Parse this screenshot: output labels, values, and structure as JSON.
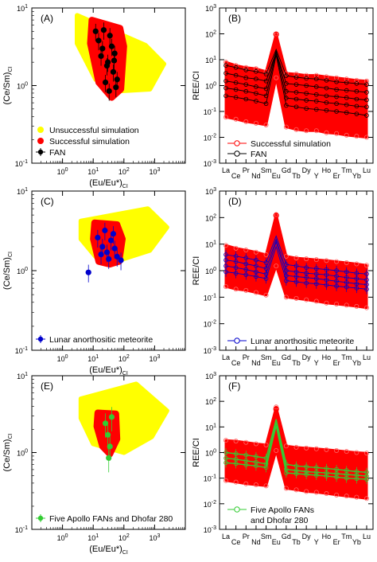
{
  "colors": {
    "unsuccessful": "#ffff00",
    "successful": "#ff0000",
    "fan": "#000000",
    "lunar": "#0000cc",
    "apollo": "#33cc33"
  },
  "chart_data": [
    {
      "id": "A",
      "type": "scatter",
      "panel_label": "(A)",
      "xlabel_main": "(Eu/Eu*)",
      "xlabel_sub": "CI",
      "ylabel_main": "(Ce/Sm)",
      "ylabel_sub": "CI",
      "xscale": "log",
      "yscale": "log",
      "xlim": [
        0.1,
        10000
      ],
      "ylim": [
        0.1,
        10
      ],
      "x_ticks": [
        {
          "v": 1,
          "label": "10",
          "exp": "0"
        },
        {
          "v": 10,
          "label": "10",
          "exp": "1"
        },
        {
          "v": 100,
          "label": "10",
          "exp": "2"
        },
        {
          "v": 1000,
          "label": "10",
          "exp": "3"
        }
      ],
      "y_ticks": [
        {
          "v": 0.1,
          "label": "10",
          "exp": "-1"
        },
        {
          "v": 1,
          "label": "10",
          "exp": "0"
        },
        {
          "v": 10,
          "label": "10",
          "exp": "1"
        }
      ],
      "unsuccessful_region": [
        [
          3,
          8
        ],
        [
          500,
          3.3
        ],
        [
          2000,
          1.9
        ],
        [
          700,
          0.9
        ],
        [
          60,
          0.85
        ],
        [
          12,
          1.2
        ],
        [
          3,
          3.5
        ]
      ],
      "successful_region": [
        [
          9,
          7
        ],
        [
          75,
          5.5
        ],
        [
          100,
          3.2
        ],
        [
          80,
          0.9
        ],
        [
          40,
          0.7
        ],
        [
          15,
          1.1
        ],
        [
          8,
          3.5
        ]
      ],
      "points": [
        [
          12,
          5
        ],
        [
          20,
          3
        ],
        [
          30,
          2
        ],
        [
          45,
          1.5
        ],
        [
          25,
          1.1
        ],
        [
          50,
          2.6
        ],
        [
          15,
          3.8
        ],
        [
          35,
          4.4
        ],
        [
          60,
          1.2
        ],
        [
          28,
          1.8
        ],
        [
          18,
          2.4
        ],
        [
          40,
          3.2
        ],
        [
          55,
          0.95
        ],
        [
          22,
          5.2
        ],
        [
          33,
          0.85
        ],
        [
          48,
          2.1
        ]
      ],
      "point_yerr": 0.25,
      "legend": {
        "position": "bottom-left",
        "entries": [
          {
            "label": "Unsuccessful simulation",
            "kind": "unsuccessful"
          },
          {
            "label": "Successful simulation",
            "kind": "successful"
          },
          {
            "label": "FAN",
            "kind": "fan"
          }
        ]
      }
    },
    {
      "id": "B",
      "type": "line",
      "panel_label": "(B)",
      "ylabel": "REE/CI",
      "yscale": "log",
      "ylim": [
        0.001,
        1000
      ],
      "categories": [
        "La",
        "Ce",
        "Pr",
        "Nd",
        "Sm",
        "Eu",
        "Gd",
        "Tb",
        "Dy",
        "Y",
        "Ho",
        "Er",
        "Tm",
        "Yb",
        "Lu"
      ],
      "y_ticks": [
        {
          "v": 0.001,
          "label": "10",
          "exp": "-3"
        },
        {
          "v": 0.01,
          "label": "10",
          "exp": "-2"
        },
        {
          "v": 0.1,
          "label": "10",
          "exp": "-1"
        },
        {
          "v": 1,
          "label": "10",
          "exp": "0"
        },
        {
          "v": 10,
          "label": "10",
          "exp": "1"
        },
        {
          "v": 100,
          "label": "10",
          "exp": "2"
        },
        {
          "v": 1000,
          "label": "10",
          "exp": "3"
        }
      ],
      "successful_band": {
        "upper": [
          8,
          6,
          5,
          4.5,
          3.5,
          100,
          3,
          2.8,
          2.5,
          2.5,
          2.2,
          2,
          1.8,
          1.6,
          1.5
        ],
        "lower": [
          0.06,
          0.05,
          0.04,
          0.035,
          0.03,
          2,
          0.025,
          0.02,
          0.018,
          0.018,
          0.015,
          0.014,
          0.012,
          0.011,
          0.01
        ]
      },
      "series_lines": [
        [
          6,
          5,
          4,
          3.5,
          2.8,
          25,
          2.4,
          2.1,
          1.9,
          1.8,
          1.6,
          1.4,
          1.3,
          1.2,
          1.1
        ],
        [
          3,
          2.5,
          2,
          1.8,
          1.5,
          20,
          1.2,
          1.1,
          1,
          0.9,
          0.8,
          0.7,
          0.65,
          0.6,
          0.55
        ],
        [
          1.5,
          1.3,
          1.1,
          0.9,
          0.75,
          22,
          0.6,
          0.55,
          0.5,
          0.45,
          0.4,
          0.37,
          0.34,
          0.3,
          0.28
        ],
        [
          0.8,
          0.7,
          0.6,
          0.5,
          0.4,
          18,
          0.33,
          0.3,
          0.27,
          0.25,
          0.22,
          0.2,
          0.18,
          0.16,
          0.15
        ],
        [
          0.4,
          0.35,
          0.3,
          0.25,
          0.2,
          15,
          0.17,
          0.15,
          0.13,
          0.12,
          0.11,
          0.1,
          0.09,
          0.08,
          0.07
        ]
      ],
      "peak_marker": [
        5,
        95
      ],
      "legend": {
        "position": "bottom-left",
        "entries": [
          {
            "label": "Successful simulation",
            "kind": "successful-open"
          },
          {
            "label": "FAN",
            "kind": "fan-open"
          }
        ]
      }
    },
    {
      "id": "C",
      "type": "scatter",
      "panel_label": "(C)",
      "xlabel_main": "(Eu/Eu*)",
      "xlabel_sub": "CI",
      "ylabel_main": "(Ce/Sm)",
      "ylabel_sub": "CI",
      "xscale": "log",
      "yscale": "log",
      "xlim": [
        0.1,
        10000
      ],
      "ylim": [
        0.1,
        10
      ],
      "x_ticks": [
        {
          "v": 1,
          "label": "10",
          "exp": "0"
        },
        {
          "v": 10,
          "label": "10",
          "exp": "1"
        },
        {
          "v": 100,
          "label": "10",
          "exp": "2"
        },
        {
          "v": 1000,
          "label": "10",
          "exp": "3"
        }
      ],
      "y_ticks": [
        {
          "v": 0.1,
          "label": "10",
          "exp": "-1"
        },
        {
          "v": 1,
          "label": "10",
          "exp": "0"
        },
        {
          "v": 10,
          "label": "10",
          "exp": "1"
        }
      ],
      "unsuccessful_region": [
        [
          4,
          4.2
        ],
        [
          600,
          6
        ],
        [
          2500,
          3.5
        ],
        [
          700,
          1.8
        ],
        [
          50,
          1.3
        ],
        [
          12,
          1.5
        ],
        [
          4,
          2.5
        ]
      ],
      "successful_region": [
        [
          11,
          4
        ],
        [
          60,
          3.8
        ],
        [
          90,
          2.5
        ],
        [
          70,
          1.3
        ],
        [
          35,
          1.2
        ],
        [
          15,
          1.3
        ],
        [
          10,
          2.5
        ]
      ],
      "points": [
        [
          14,
          2.6
        ],
        [
          20,
          2
        ],
        [
          28,
          1.7
        ],
        [
          38,
          2.4
        ],
        [
          50,
          1.9
        ],
        [
          24,
          3.2
        ],
        [
          60,
          1.5
        ],
        [
          32,
          1.4
        ],
        [
          18,
          1.6
        ],
        [
          45,
          2.9
        ],
        [
          7,
          0.95
        ],
        [
          80,
          1.35
        ]
      ],
      "point_yerr": 0.25,
      "legend": {
        "position": "bottom-left",
        "entries": [
          {
            "label": "Lunar anorthositic meteorite",
            "kind": "lunar"
          }
        ]
      }
    },
    {
      "id": "D",
      "type": "line",
      "panel_label": "(D)",
      "ylabel": "REE/CI",
      "yscale": "log",
      "ylim": [
        0.001,
        1000
      ],
      "categories": [
        "La",
        "Ce",
        "Pr",
        "Nd",
        "Sm",
        "Eu",
        "Gd",
        "Tb",
        "Dy",
        "Y",
        "Ho",
        "Er",
        "Tm",
        "Yb",
        "Lu"
      ],
      "y_ticks": [
        {
          "v": 0.001,
          "label": "10",
          "exp": "-3"
        },
        {
          "v": 0.01,
          "label": "10",
          "exp": "-2"
        },
        {
          "v": 0.1,
          "label": "10",
          "exp": "-1"
        },
        {
          "v": 1,
          "label": "10",
          "exp": "0"
        },
        {
          "v": 10,
          "label": "10",
          "exp": "1"
        },
        {
          "v": 100,
          "label": "10",
          "exp": "2"
        },
        {
          "v": 1000,
          "label": "10",
          "exp": "3"
        }
      ],
      "successful_band": {
        "upper": [
          9,
          7,
          6,
          5,
          4,
          130,
          3.5,
          3,
          2.8,
          2.6,
          2.4,
          2.2,
          2,
          1.8,
          1.6
        ],
        "lower": [
          0.25,
          0.2,
          0.18,
          0.15,
          0.12,
          1.5,
          0.1,
          0.09,
          0.08,
          0.07,
          0.06,
          0.055,
          0.05,
          0.045,
          0.04
        ]
      },
      "series_lines": [
        [
          4,
          3.5,
          3,
          2.5,
          2,
          20,
          1.7,
          1.5,
          1.3,
          1.2,
          1.1,
          1,
          0.9,
          0.8,
          0.75
        ],
        [
          2.5,
          2.2,
          1.8,
          1.5,
          1.2,
          15,
          1,
          0.9,
          0.8,
          0.75,
          0.7,
          0.62,
          0.55,
          0.5,
          0.45
        ],
        [
          1.5,
          1.3,
          1.1,
          0.9,
          0.75,
          12,
          0.65,
          0.6,
          0.55,
          0.5,
          0.45,
          0.4,
          0.36,
          0.32,
          0.3
        ],
        [
          0.9,
          0.8,
          0.7,
          0.6,
          0.5,
          8,
          0.42,
          0.38,
          0.34,
          0.32,
          0.29,
          0.26,
          0.24,
          0.22,
          0.2
        ]
      ],
      "peak_marker": [
        5,
        120
      ],
      "legend": {
        "position": "bottom-left",
        "entries": [
          {
            "label": "Lunar anorthositic meteorite",
            "kind": "lunar-open"
          }
        ]
      }
    },
    {
      "id": "E",
      "type": "scatter",
      "panel_label": "(E)",
      "xlabel_main": "(Eu/Eu*)",
      "xlabel_sub": "CI",
      "ylabel_main": "(Ce/Sm)",
      "ylabel_sub": "CI",
      "xscale": "log",
      "yscale": "log",
      "xlim": [
        0.1,
        10000
      ],
      "ylim": [
        0.1,
        10
      ],
      "x_ticks": [
        {
          "v": 1,
          "label": "10",
          "exp": "0"
        },
        {
          "v": 10,
          "label": "10",
          "exp": "1"
        },
        {
          "v": 100,
          "label": "10",
          "exp": "2"
        },
        {
          "v": 1000,
          "label": "10",
          "exp": "3"
        }
      ],
      "y_ticks": [
        {
          "v": 0.1,
          "label": "10",
          "exp": "-1"
        },
        {
          "v": 1,
          "label": "10",
          "exp": "0"
        },
        {
          "v": 10,
          "label": "10",
          "exp": "1"
        }
      ],
      "unsuccessful_region": [
        [
          4,
          5
        ],
        [
          250,
          7.8
        ],
        [
          2500,
          3.5
        ],
        [
          800,
          1.6
        ],
        [
          100,
          1
        ],
        [
          10,
          1.3
        ],
        [
          4,
          2.8
        ]
      ],
      "successful_region": [
        [
          14,
          3.3
        ],
        [
          55,
          3.2
        ],
        [
          60,
          1.5
        ],
        [
          35,
          0.95
        ],
        [
          20,
          1.2
        ],
        [
          13,
          2.2
        ]
      ],
      "points": [
        [
          25,
          2.4
        ],
        [
          30,
          1.7
        ],
        [
          35,
          1.2
        ],
        [
          40,
          2.9
        ],
        [
          32,
          0.85
        ]
      ],
      "point_yerr": 0.35,
      "legend": {
        "position": "bottom-left",
        "entries": [
          {
            "label": "Five Apollo FANs and Dhofar 280",
            "kind": "apollo"
          }
        ]
      }
    },
    {
      "id": "F",
      "type": "line",
      "panel_label": "(F)",
      "ylabel": "REE/CI",
      "yscale": "log",
      "ylim": [
        0.001,
        1000
      ],
      "categories": [
        "La",
        "Ce",
        "Pr",
        "Nd",
        "Sm",
        "Eu",
        "Gd",
        "Tb",
        "Dy",
        "Y",
        "Ho",
        "Er",
        "Tm",
        "Yb",
        "Lu"
      ],
      "y_ticks": [
        {
          "v": 0.001,
          "label": "10",
          "exp": "-3"
        },
        {
          "v": 0.01,
          "label": "10",
          "exp": "-2"
        },
        {
          "v": 0.1,
          "label": "10",
          "exp": "-1"
        },
        {
          "v": 1,
          "label": "10",
          "exp": "0"
        },
        {
          "v": 10,
          "label": "10",
          "exp": "1"
        },
        {
          "v": 100,
          "label": "10",
          "exp": "2"
        },
        {
          "v": 1000,
          "label": "10",
          "exp": "3"
        }
      ],
      "successful_band": {
        "upper": [
          3,
          2.8,
          2.5,
          2.2,
          2,
          60,
          1.8,
          1.6,
          1.5,
          1.4,
          1.3,
          1.2,
          1.1,
          1,
          0.95
        ],
        "lower": [
          0.08,
          0.07,
          0.06,
          0.055,
          0.05,
          1.2,
          0.04,
          0.035,
          0.03,
          0.028,
          0.025,
          0.022,
          0.02,
          0.018,
          0.016
        ]
      },
      "series_lines": [
        [
          1,
          0.9,
          0.8,
          0.7,
          0.6,
          20,
          0.35,
          0.3,
          0.28,
          0.26,
          0.24,
          0.22,
          0.2,
          0.18,
          0.17
        ],
        [
          0.6,
          0.55,
          0.48,
          0.42,
          0.36,
          15,
          0.22,
          0.2,
          0.18,
          0.17,
          0.16,
          0.15,
          0.14,
          0.13,
          0.12
        ],
        [
          0.4,
          0.37,
          0.33,
          0.3,
          0.26,
          11,
          0.16,
          0.15,
          0.14,
          0.13,
          0.12,
          0.11,
          0.1,
          0.095,
          0.09
        ]
      ],
      "peak_marker": [
        5,
        50
      ],
      "legend": {
        "position": "bottom-left",
        "entries": [
          {
            "label": "Five Apollo FANs",
            "kind": "apollo-open"
          },
          {
            "label": "and Dhofar 280",
            "kind": "none"
          }
        ]
      }
    }
  ]
}
